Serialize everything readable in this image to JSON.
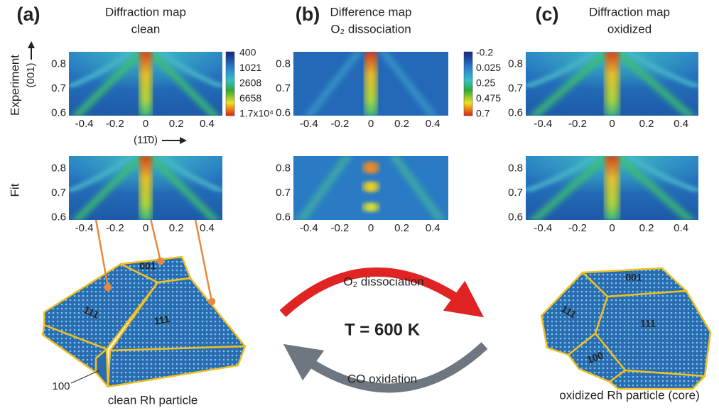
{
  "panels": [
    {
      "label": "(a)",
      "title": "Diffraction map",
      "subtitle": "clean",
      "colorbar": [
        400,
        1021,
        2608,
        6658,
        {
          "value": 17000,
          "label": "1.7x10⁴"
        }
      ],
      "particle": {
        "facets": [
          "001",
          "111",
          "111",
          "100"
        ],
        "caption": "clean Rh particle"
      }
    },
    {
      "label": "(b)",
      "title": "Difference map",
      "subtitle": "O₂ dissociation",
      "colorbar": [
        -0.2,
        0.025,
        0.25,
        0.475,
        0.7
      ]
    },
    {
      "label": "(c)",
      "title": "Diffraction map",
      "subtitle": "oxidized",
      "particle": {
        "facets": [
          "001",
          "111",
          "111",
          "100"
        ],
        "caption": "oxidized Rh particle (core)"
      }
    }
  ],
  "row_labels": [
    "Experiment",
    "Fit"
  ],
  "axis_labels": {
    "y": "(001)",
    "x": "(11̄0)"
  },
  "axes": {
    "xlim": [
      -0.5,
      0.5
    ],
    "ylim": [
      0.59,
      0.85
    ],
    "xticks": [
      -0.4,
      -0.2,
      0,
      0.2,
      0.4
    ],
    "yticks": [
      0.6,
      0.7,
      0.8
    ]
  },
  "cycle": {
    "forward": "O₂ dissociation",
    "temperature": "T = 600 K",
    "backward": "CO oxidation"
  }
}
